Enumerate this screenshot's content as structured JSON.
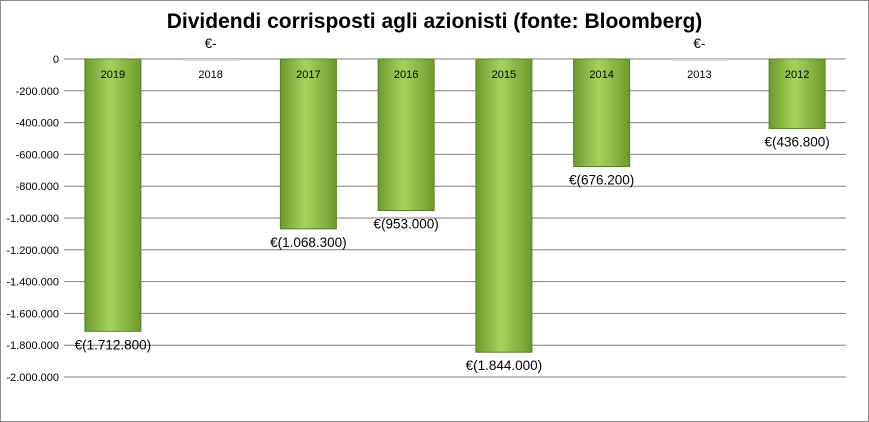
{
  "chart_data": {
    "type": "bar",
    "title": "Dividendi corrisposti agli azionisti (fonte: Bloomberg)",
    "xlabel": "",
    "ylabel": "",
    "categories": [
      "2019",
      "2018",
      "2017",
      "2016",
      "2015",
      "2014",
      "2013",
      "2012"
    ],
    "values": [
      -1712800,
      0,
      -1068300,
      -953000,
      -1844000,
      -676200,
      0,
      -436800
    ],
    "data_labels": [
      "€(1.712.800)",
      "€-",
      "€(1.068.300)",
      "€(953.000)",
      "€(1.844.000)",
      "€(676.200)",
      "€-",
      "€(436.800)"
    ],
    "ylim": [
      -2000000,
      0
    ],
    "yticks": [
      0,
      -200000,
      -400000,
      -600000,
      -800000,
      -1000000,
      -1200000,
      -1400000,
      -1600000,
      -1800000,
      -2000000
    ],
    "ytick_labels": [
      "0",
      "-200.000",
      "-400.000",
      "-600.000",
      "-800.000",
      "-1.000.000",
      "-1.200.000",
      "-1.400.000",
      "-1.600.000",
      "-1.800.000",
      "-2.000.000"
    ],
    "grid": true,
    "legend": "none",
    "colors": {
      "bar_light": "#a6d45a",
      "bar_dark": "#6e9a2e",
      "bar_edge": "#5a7f25",
      "grid": "#7f7f7f"
    }
  }
}
